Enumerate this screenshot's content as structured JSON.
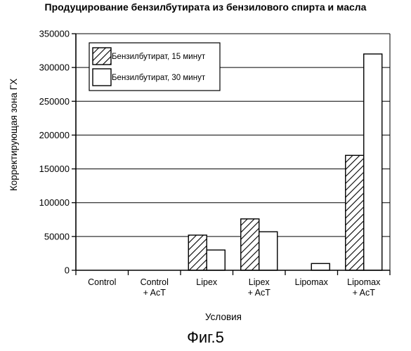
{
  "figure_caption": "Фиг.5",
  "chart_data": {
    "type": "bar",
    "title": "Продуцирование бензилбутирата из бензилового спирта и масла",
    "xlabel": "Условия",
    "ylabel": "Корректирующая зона ГХ",
    "ylim": [
      0,
      350000
    ],
    "yticks": [
      "0",
      "50000",
      "100000",
      "150000",
      "200000",
      "250000",
      "300000",
      "350000"
    ],
    "grid": true,
    "legend_position": "top-left",
    "categories": [
      [
        "Control"
      ],
      [
        "Control",
        "+ AcT"
      ],
      [
        "Lipex"
      ],
      [
        "Lipex",
        "+ AcT"
      ],
      [
        "Lipomax"
      ],
      [
        "Lipomax",
        "+ AcT"
      ]
    ],
    "series": [
      {
        "name": "Бензилбутират, 15 минут",
        "pattern": "hatched",
        "values": [
          0,
          0,
          52000,
          76000,
          0,
          170000
        ]
      },
      {
        "name": "Бензилбутират, 30 минут",
        "pattern": "plain",
        "values": [
          0,
          0,
          30000,
          57000,
          10000,
          320000
        ]
      }
    ]
  }
}
